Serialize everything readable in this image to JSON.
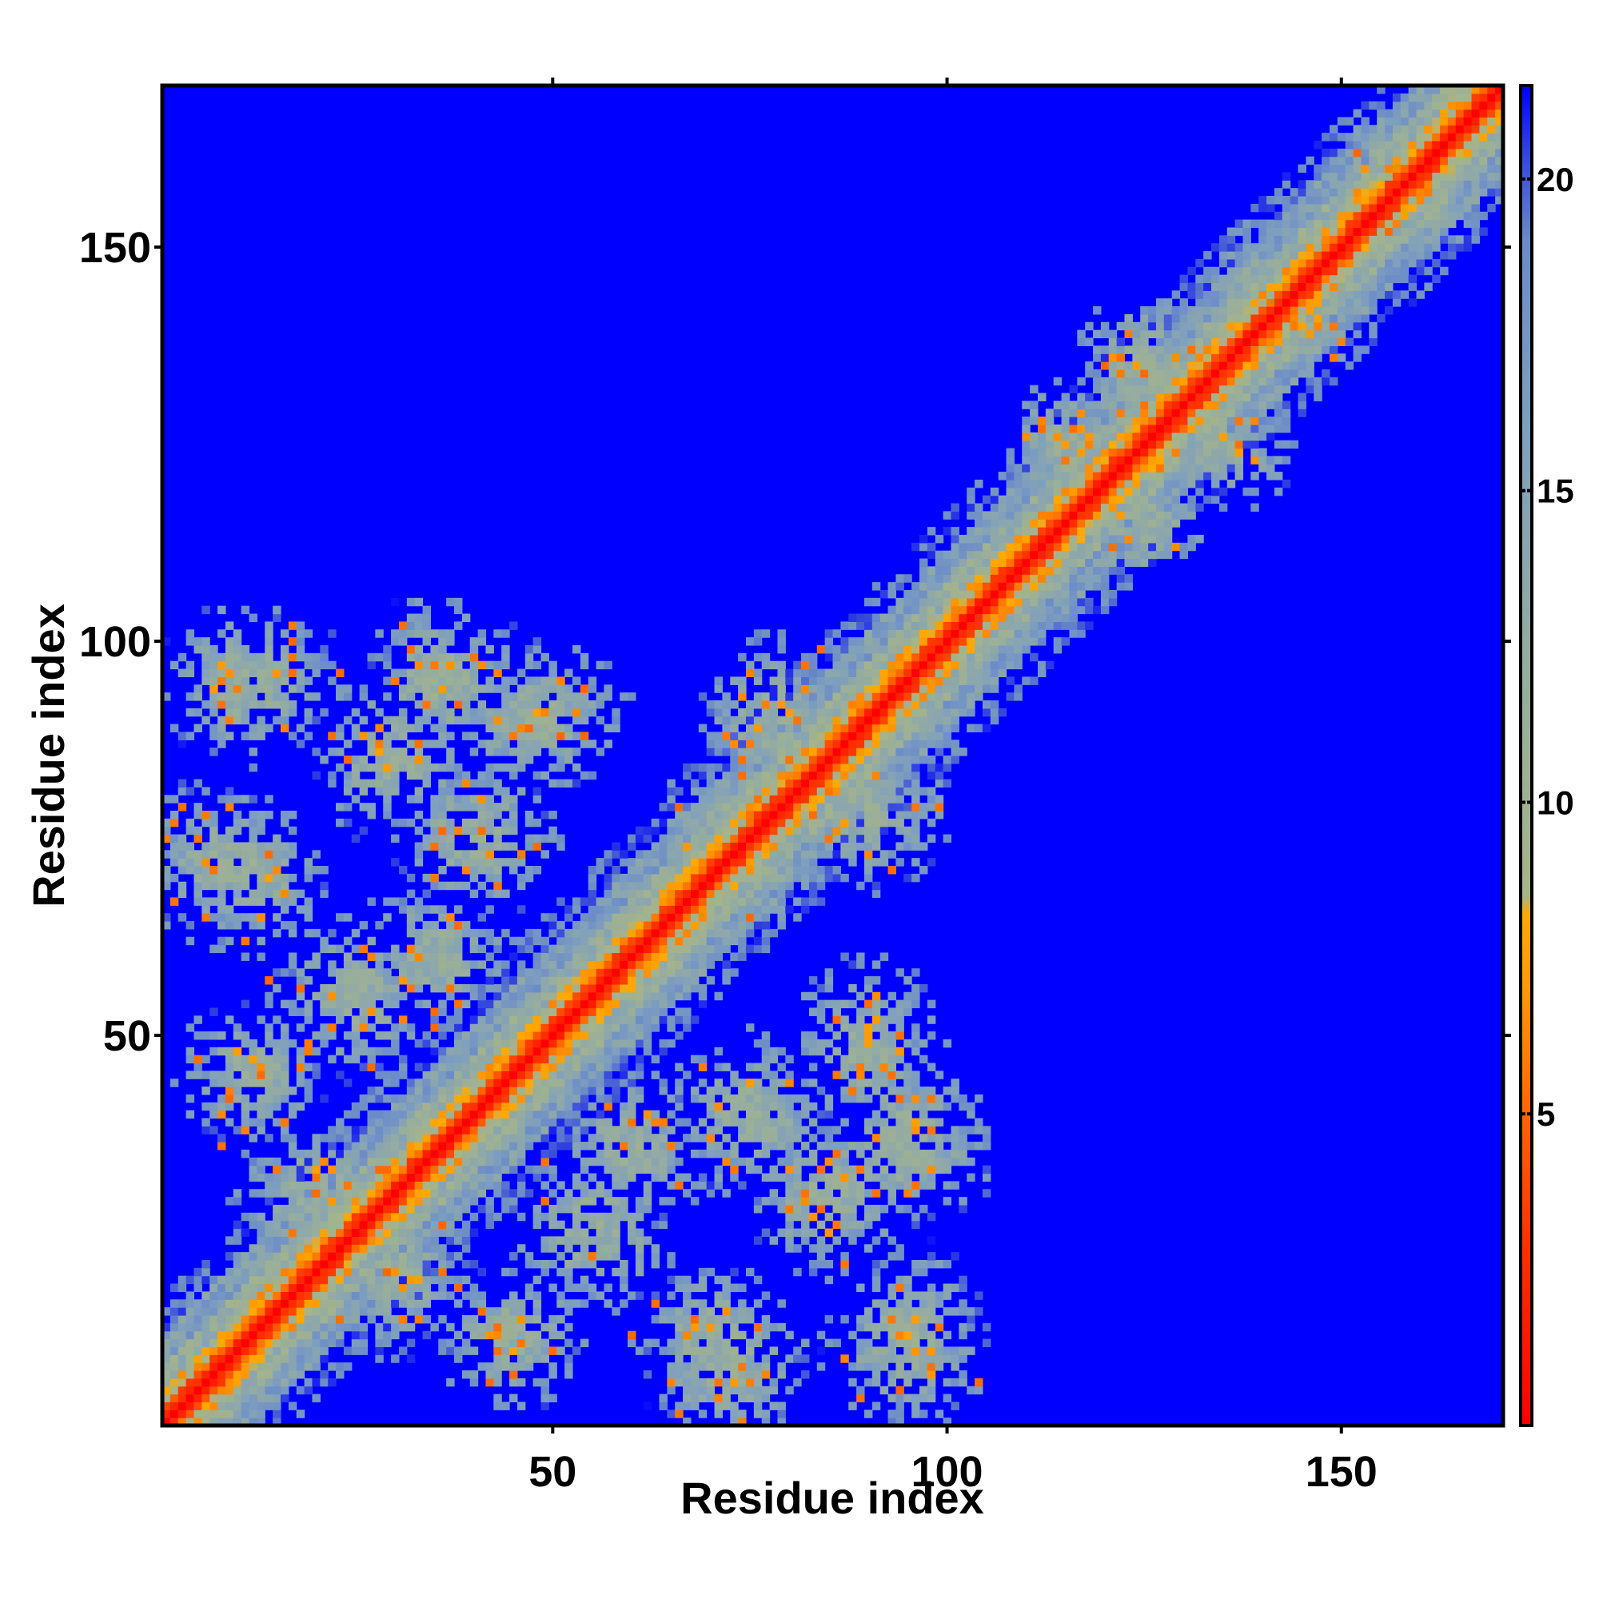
{
  "chart_data": {
    "type": "heatmap",
    "title": "",
    "xlabel": "Residue index",
    "ylabel": "Residue index",
    "n_residues": 170,
    "xlim": [
      1,
      170
    ],
    "ylim": [
      1,
      170
    ],
    "x_ticks": [
      50,
      100,
      150
    ],
    "y_ticks": [
      50,
      100,
      150
    ],
    "colorbar": {
      "ticks": [
        5,
        10,
        15,
        20
      ],
      "range": [
        0,
        21.5
      ],
      "colormap": [
        {
          "value": 0,
          "color": "#ff0000"
        },
        {
          "value": 3,
          "color": "#ff3300"
        },
        {
          "value": 5,
          "color": "#ff6600"
        },
        {
          "value": 7,
          "color": "#ff9900"
        },
        {
          "value": 8.2,
          "color": "#ffaa00"
        },
        {
          "value": 8.5,
          "color": "#a6b48a"
        },
        {
          "value": 12,
          "color": "#97ad9e"
        },
        {
          "value": 16,
          "color": "#7f9fbe"
        },
        {
          "value": 19,
          "color": "#6c8cc8"
        },
        {
          "value": 20.5,
          "color": "#3040e0"
        },
        {
          "value": 21.5,
          "color": "#0000ff"
        }
      ]
    },
    "matrix_description_values": {
      "background_value": 21.5,
      "diagonal_value": 0
    },
    "domains": [
      {
        "from": 1,
        "to": 105
      },
      {
        "from": 110,
        "to": 170
      }
    ],
    "contact_patches": [
      [
        10,
        95,
        8,
        9
      ],
      [
        35,
        95,
        7,
        10
      ],
      [
        40,
        75,
        8,
        9
      ],
      [
        30,
        85,
        9,
        9
      ],
      [
        78,
        90,
        8,
        9
      ],
      [
        75,
        72,
        8,
        9
      ],
      [
        8,
        72,
        9,
        9
      ],
      [
        25,
        55,
        9,
        9
      ],
      [
        90,
        48,
        8,
        10
      ],
      [
        95,
        37,
        8,
        9
      ],
      [
        60,
        35,
        8,
        9
      ],
      [
        75,
        40,
        9,
        9
      ],
      [
        95,
        12,
        8,
        10
      ],
      [
        70,
        12,
        8,
        8
      ],
      [
        45,
        12,
        8,
        8
      ],
      [
        20,
        30,
        9,
        8
      ],
      [
        125,
        135,
        7,
        8
      ],
      [
        140,
        145,
        6,
        7
      ],
      [
        115,
        125,
        7,
        7
      ],
      [
        155,
        160,
        6,
        6
      ]
    ]
  }
}
